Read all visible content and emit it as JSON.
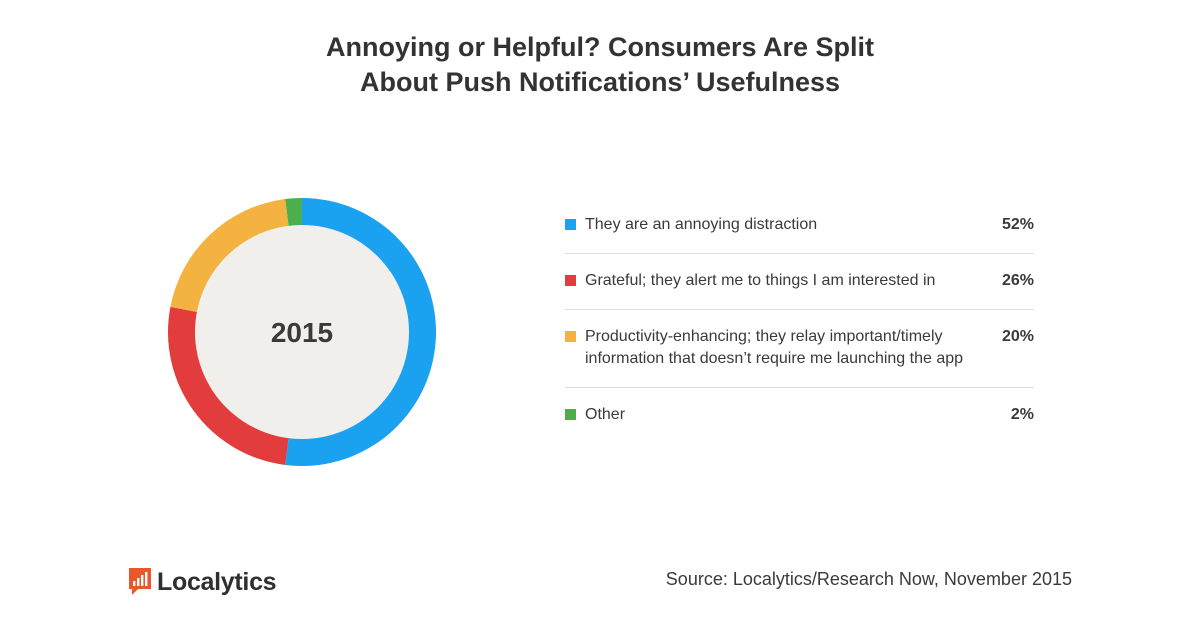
{
  "title": {
    "line1": "Annoying or Helpful? Consumers Are Split",
    "line2": "About Push Notifications’ Usefulness"
  },
  "chart_data": {
    "type": "pie",
    "variant": "donut",
    "center_label": "2015",
    "slices": [
      {
        "label": "They are an annoying distraction",
        "value": 52,
        "display": "52%",
        "color": "#1aa1f0"
      },
      {
        "label": "Grateful; they alert me to things I am interested in",
        "value": 26,
        "display": "26%",
        "color": "#e23c3c"
      },
      {
        "label": "Productivity-enhancing; they relay important/timely information that doesn’t require me launching the app",
        "value": 20,
        "display": "20%",
        "color": "#f4b240"
      },
      {
        "label": "Other",
        "value": 2,
        "display": "2%",
        "color": "#4cae4c"
      }
    ],
    "legend_position": "right",
    "center_fill": "#f0efeb"
  },
  "footer": {
    "logo_text": "Localytics",
    "source": "Source: Localytics/Research Now, November 2015",
    "logo_color": "#e8582b"
  }
}
